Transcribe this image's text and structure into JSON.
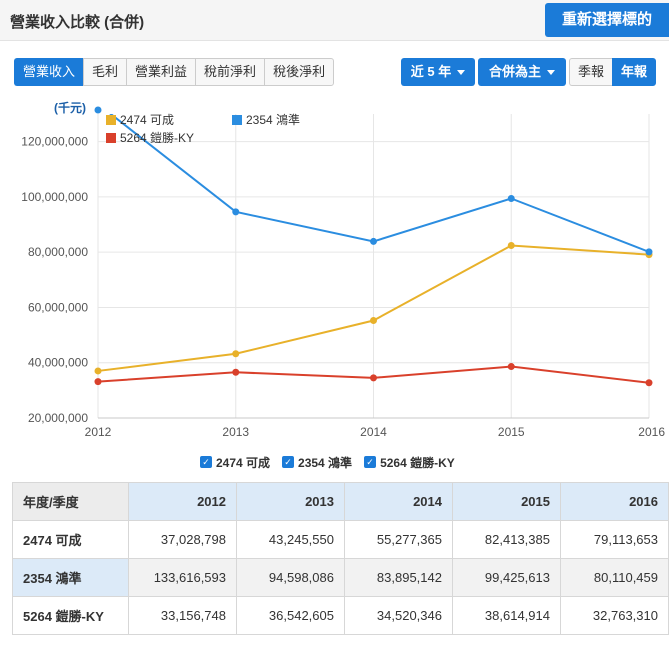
{
  "header": {
    "title": "營業收入比較 (合併)",
    "reselect_label": "重新選擇標的"
  },
  "tabs": [
    {
      "label": "營業收入",
      "active": true
    },
    {
      "label": "毛利",
      "active": false
    },
    {
      "label": "營業利益",
      "active": false
    },
    {
      "label": "稅前淨利",
      "active": false
    },
    {
      "label": "稅後淨利",
      "active": false
    }
  ],
  "controls": {
    "range_label": "近 5 年",
    "basis_label": "合併為主",
    "quarterly_label": "季報",
    "annual_label": "年報"
  },
  "chart_data": {
    "type": "line",
    "ylabel": "(千元)",
    "x": [
      "2012",
      "2013",
      "2014",
      "2015",
      "2016"
    ],
    "ylim": [
      20000000,
      130000000
    ],
    "yticks": [
      "20,000,000",
      "40,000,000",
      "60,000,000",
      "80,000,000",
      "100,000,000",
      "120,000,000"
    ],
    "yticks_values": [
      20000000,
      40000000,
      60000000,
      80000000,
      100000000,
      120000000
    ],
    "grid": true,
    "legend_position": "top-left",
    "series": [
      {
        "name": "2474 可成",
        "color": "#e8b12a",
        "values": [
          37028798,
          43245550,
          55277365,
          82413385,
          79113653
        ]
      },
      {
        "name": "2354 鴻準",
        "color": "#2b8de0",
        "values": [
          133616593,
          94598086,
          83895142,
          99425613,
          80110459
        ]
      },
      {
        "name": "5264 鎧勝-KY",
        "color": "#d9402b",
        "values": [
          33156748,
          36542605,
          34520346,
          38614914,
          32763310
        ]
      }
    ]
  },
  "table": {
    "header_label": "年度/季度",
    "columns": [
      "2012",
      "2013",
      "2014",
      "2015",
      "2016"
    ],
    "rows": [
      {
        "label": "2474 可成",
        "cells": [
          "37,028,798",
          "43,245,550",
          "55,277,365",
          "82,413,385",
          "79,113,653"
        ]
      },
      {
        "label": "2354 鴻準",
        "cells": [
          "133,616,593",
          "94,598,086",
          "83,895,142",
          "99,425,613",
          "80,110,459"
        ]
      },
      {
        "label": "5264 鎧勝-KY",
        "cells": [
          "33,156,748",
          "36,542,605",
          "34,520,346",
          "38,614,914",
          "32,763,310"
        ]
      }
    ]
  }
}
